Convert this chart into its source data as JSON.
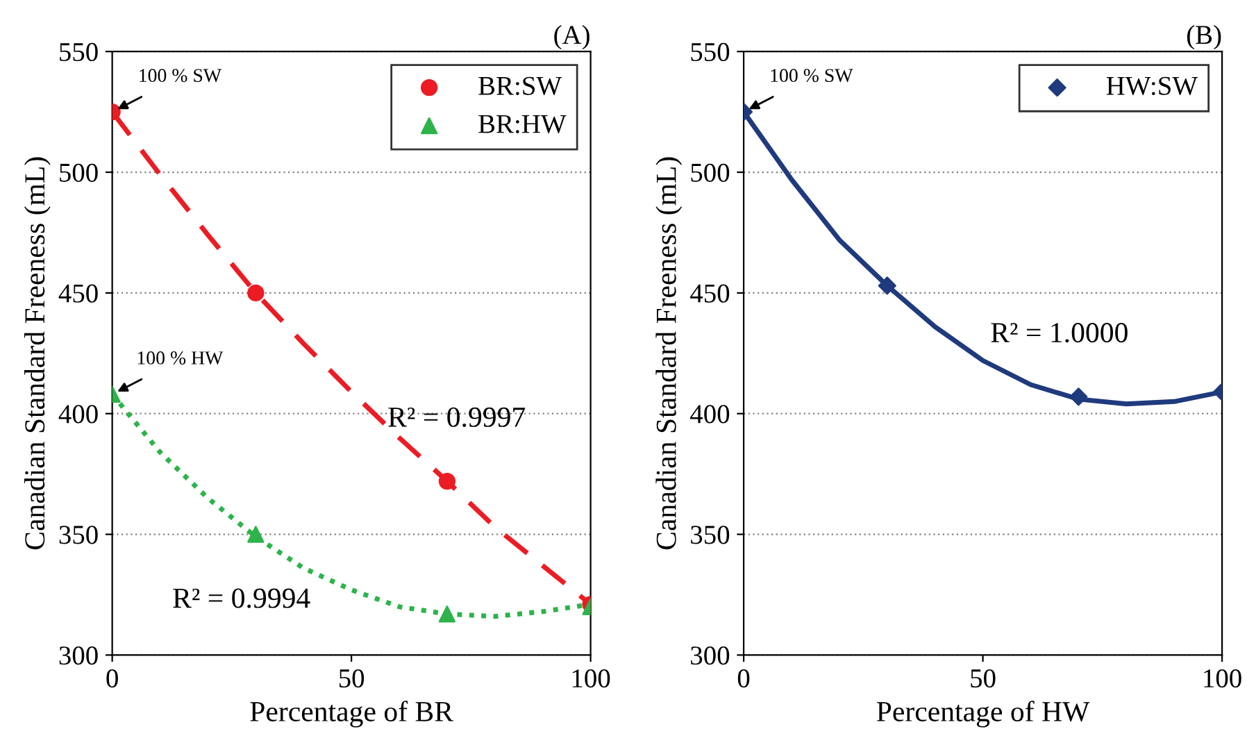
{
  "chart_data": [
    {
      "type": "scatter",
      "title": "(A)",
      "xlabel": "Percentage of BR",
      "ylabel": "Canadian Standard Freeness (mL)",
      "xlim": [
        0,
        100
      ],
      "ylim": [
        300,
        550
      ],
      "xticks": [
        0,
        50,
        100
      ],
      "yticks": [
        300,
        350,
        400,
        450,
        500,
        550
      ],
      "grid": "y",
      "legend": "top right",
      "series": [
        {
          "name": "BR:SW",
          "marker": "circle",
          "color": "#ec1c24",
          "x": [
            0,
            30,
            70,
            100
          ],
          "values": [
            525,
            450,
            372,
            321
          ]
        },
        {
          "name": "BR:HW",
          "marker": "triangle",
          "color": "#2db34a",
          "x": [
            0,
            30,
            70,
            100
          ],
          "values": [
            408,
            350,
            317,
            320
          ]
        },
        {
          "type": "line",
          "line_style": "dashed",
          "color": "#ec1c24",
          "x": [
            0,
            10,
            20,
            30,
            40,
            50,
            60,
            70,
            80,
            90,
            100
          ],
          "values": [
            525,
            499,
            474,
            450,
            429,
            409,
            390,
            372,
            353,
            337,
            321
          ]
        },
        {
          "type": "line",
          "line_style": "dotted",
          "color": "#2db34a",
          "x": [
            0,
            10,
            20,
            30,
            40,
            50,
            60,
            70,
            80,
            90,
            100
          ],
          "values": [
            408,
            384,
            365,
            349,
            336,
            327,
            320,
            317,
            316,
            318,
            321
          ]
        }
      ],
      "annotations": [
        "100 % SW",
        "100 % HW",
        "R² = 0.9997",
        "R² = 0.9994"
      ]
    },
    {
      "type": "scatter",
      "title": "(B)",
      "xlabel": "Percentage of HW",
      "ylabel": "Canadian Standard Freeness (mL)",
      "xlim": [
        0,
        100
      ],
      "ylim": [
        300,
        550
      ],
      "xticks": [
        0,
        50,
        100
      ],
      "yticks": [
        300,
        350,
        400,
        450,
        500,
        550
      ],
      "grid": "y",
      "legend": "top right",
      "series": [
        {
          "name": "HW:SW",
          "marker": "diamond",
          "color": "#1f3a7d",
          "x": [
            0,
            30,
            70,
            100
          ],
          "values": [
            525,
            453,
            407,
            409
          ]
        },
        {
          "type": "line",
          "line_style": "solid",
          "color": "#1f3a7d",
          "x": [
            0,
            10,
            20,
            30,
            40,
            50,
            60,
            70,
            80,
            90,
            100
          ],
          "values": [
            525,
            497,
            472,
            453,
            436,
            422,
            412,
            406,
            404,
            405,
            409
          ]
        }
      ],
      "annotations": [
        "100 % SW",
        "R² = 1.0000"
      ]
    }
  ]
}
